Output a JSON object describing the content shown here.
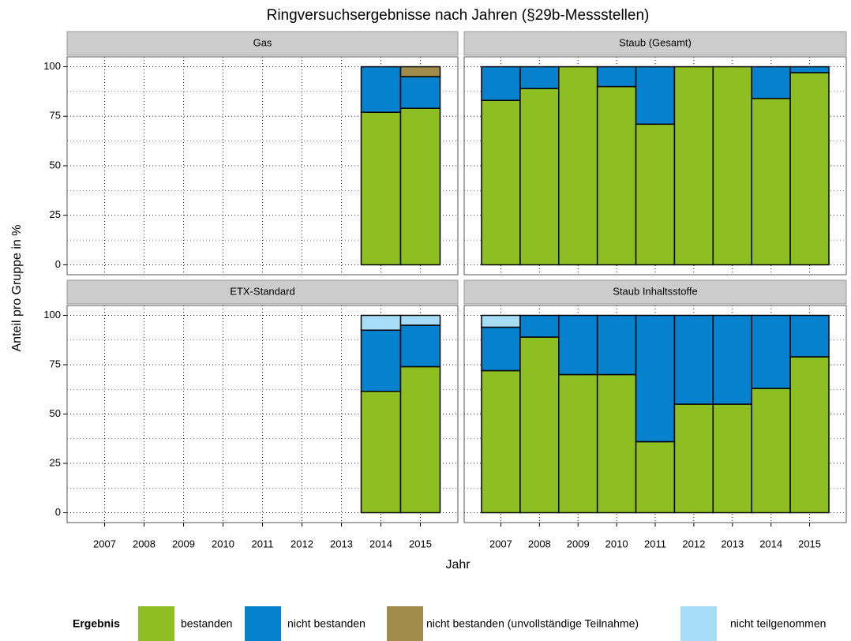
{
  "title": "Ringversuchsergebnisse nach Jahren (§29b-Messstellen)",
  "x_label": "Jahr",
  "y_label": "Anteil pro Gruppe in %",
  "legend_title": "Ergebnis",
  "chart_data": [
    {
      "type": "bar",
      "stacked": true,
      "facet": "Gas",
      "categories": [
        "2007",
        "2008",
        "2009",
        "2010",
        "2011",
        "2012",
        "2013",
        "2014",
        "2015"
      ],
      "series": [
        {
          "name": "bestanden",
          "color": "#8dbf22",
          "values": [
            null,
            null,
            null,
            null,
            null,
            null,
            null,
            77,
            79
          ]
        },
        {
          "name": "nicht bestanden",
          "color": "#0581cd",
          "values": [
            null,
            null,
            null,
            null,
            null,
            null,
            null,
            23,
            16
          ]
        },
        {
          "name": "nicht bestanden (unvollständige Teilnahme)",
          "color": "#a08b4c",
          "values": [
            null,
            null,
            null,
            null,
            null,
            null,
            null,
            0,
            5
          ]
        },
        {
          "name": "nicht teilgenommen",
          "color": "#a6dcf5",
          "values": [
            null,
            null,
            null,
            null,
            null,
            null,
            null,
            0,
            0
          ]
        }
      ],
      "ylim": [
        -5,
        105
      ],
      "yticks": [
        0,
        25,
        50,
        75,
        100
      ],
      "minor_yticks": [
        12.5,
        37.5,
        62.5,
        87.5
      ],
      "grid": true
    },
    {
      "type": "bar",
      "stacked": true,
      "facet": "Staub (Gesamt)",
      "categories": [
        "2007",
        "2008",
        "2009",
        "2010",
        "2011",
        "2012",
        "2013",
        "2014",
        "2015"
      ],
      "series": [
        {
          "name": "bestanden",
          "color": "#8dbf22",
          "values": [
            83,
            89,
            100,
            90,
            71,
            100,
            100,
            84,
            97
          ]
        },
        {
          "name": "nicht bestanden",
          "color": "#0581cd",
          "values": [
            17,
            11,
            0,
            10,
            29,
            0,
            0,
            16,
            3
          ]
        },
        {
          "name": "nicht bestanden (unvollständige Teilnahme)",
          "color": "#a08b4c",
          "values": [
            0,
            0,
            0,
            0,
            0,
            0,
            0,
            0,
            0
          ]
        },
        {
          "name": "nicht teilgenommen",
          "color": "#a6dcf5",
          "values": [
            0,
            0,
            0,
            0,
            0,
            0,
            0,
            0,
            0
          ]
        }
      ],
      "ylim": [
        -5,
        105
      ],
      "yticks": [
        0,
        25,
        50,
        75,
        100
      ],
      "minor_yticks": [
        12.5,
        37.5,
        62.5,
        87.5
      ],
      "grid": true
    },
    {
      "type": "bar",
      "stacked": true,
      "facet": "ETX-Standard",
      "categories": [
        "2007",
        "2008",
        "2009",
        "2010",
        "2011",
        "2012",
        "2013",
        "2014",
        "2015"
      ],
      "series": [
        {
          "name": "bestanden",
          "color": "#8dbf22",
          "values": [
            null,
            null,
            null,
            null,
            null,
            null,
            null,
            61.5,
            74
          ]
        },
        {
          "name": "nicht bestanden",
          "color": "#0581cd",
          "values": [
            null,
            null,
            null,
            null,
            null,
            null,
            null,
            31,
            21
          ]
        },
        {
          "name": "nicht bestanden (unvollständige Teilnahme)",
          "color": "#a08b4c",
          "values": [
            null,
            null,
            null,
            null,
            null,
            null,
            null,
            0,
            0
          ]
        },
        {
          "name": "nicht teilgenommen",
          "color": "#a6dcf5",
          "values": [
            null,
            null,
            null,
            null,
            null,
            null,
            null,
            7.5,
            5
          ]
        }
      ],
      "ylim": [
        -5,
        105
      ],
      "yticks": [
        0,
        25,
        50,
        75,
        100
      ],
      "minor_yticks": [
        12.5,
        37.5,
        62.5,
        87.5
      ],
      "grid": true
    },
    {
      "type": "bar",
      "stacked": true,
      "facet": "Staub Inhaltsstoffe",
      "categories": [
        "2007",
        "2008",
        "2009",
        "2010",
        "2011",
        "2012",
        "2013",
        "2014",
        "2015"
      ],
      "series": [
        {
          "name": "bestanden",
          "color": "#8dbf22",
          "values": [
            72,
            89,
            70,
            70,
            36,
            55,
            55,
            63,
            79
          ]
        },
        {
          "name": "nicht bestanden",
          "color": "#0581cd",
          "values": [
            22,
            11,
            30,
            30,
            64,
            45,
            45,
            37,
            21
          ]
        },
        {
          "name": "nicht bestanden (unvollständige Teilnahme)",
          "color": "#a08b4c",
          "values": [
            0,
            0,
            0,
            0,
            0,
            0,
            0,
            0,
            0
          ]
        },
        {
          "name": "nicht teilgenommen",
          "color": "#a6dcf5",
          "values": [
            6,
            0,
            0,
            0,
            0,
            0,
            0,
            0,
            0
          ]
        }
      ],
      "ylim": [
        -5,
        105
      ],
      "yticks": [
        0,
        25,
        50,
        75,
        100
      ],
      "minor_yticks": [
        12.5,
        37.5,
        62.5,
        87.5
      ],
      "grid": true
    }
  ]
}
